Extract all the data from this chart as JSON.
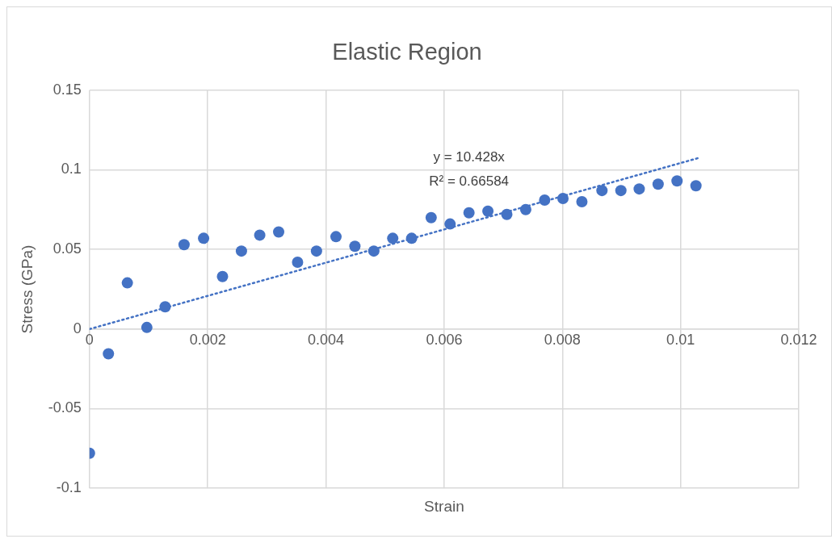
{
  "chart_data": {
    "type": "scatter",
    "title": "Elastic Region",
    "xlabel": "Strain",
    "ylabel": "Stress (GPa)",
    "xlim": [
      0,
      0.012
    ],
    "xticks": [
      0,
      0.002,
      0.004,
      0.006,
      0.008,
      0.01,
      0.012
    ],
    "ylim": [
      -0.1,
      0.15
    ],
    "yticks": [
      -0.1,
      -0.05,
      0,
      0.05,
      0.1,
      0.15
    ],
    "grid": true,
    "marker": "circle",
    "annotations": [
      "y = 10.428x",
      "R² = 0.66584"
    ],
    "series": [
      {
        "color": "#4472c4",
        "x": [
          0,
          0.00032,
          0.00064,
          0.00097,
          0.00128,
          0.0016,
          0.00193,
          0.00225,
          0.00257,
          0.00288,
          0.0032,
          0.00352,
          0.00384,
          0.00417,
          0.00449,
          0.00481,
          0.00513,
          0.00545,
          0.00578,
          0.0061,
          0.00642,
          0.00674,
          0.00706,
          0.00738,
          0.0077,
          0.00801,
          0.00833,
          0.00867,
          0.00899,
          0.0093,
          0.00962,
          0.00994,
          0.01026
        ],
        "values": [
          -0.078,
          -0.0155,
          0.029,
          0.001,
          0.014,
          0.053,
          0.057,
          0.033,
          0.049,
          0.059,
          0.061,
          0.042,
          0.049,
          0.058,
          0.052,
          0.049,
          0.057,
          0.057,
          0.07,
          0.066,
          0.073,
          0.074,
          0.072,
          0.075,
          0.081,
          0.082,
          0.08,
          0.087,
          0.087,
          0.088,
          0.091,
          0.093,
          0.09
        ]
      },
      {
        "type": "line",
        "color": "#4472c4",
        "line_style": "dotted",
        "marker": "none",
        "x": [
          0,
          0.0103
        ],
        "values": [
          0,
          0.1074
        ]
      }
    ]
  }
}
